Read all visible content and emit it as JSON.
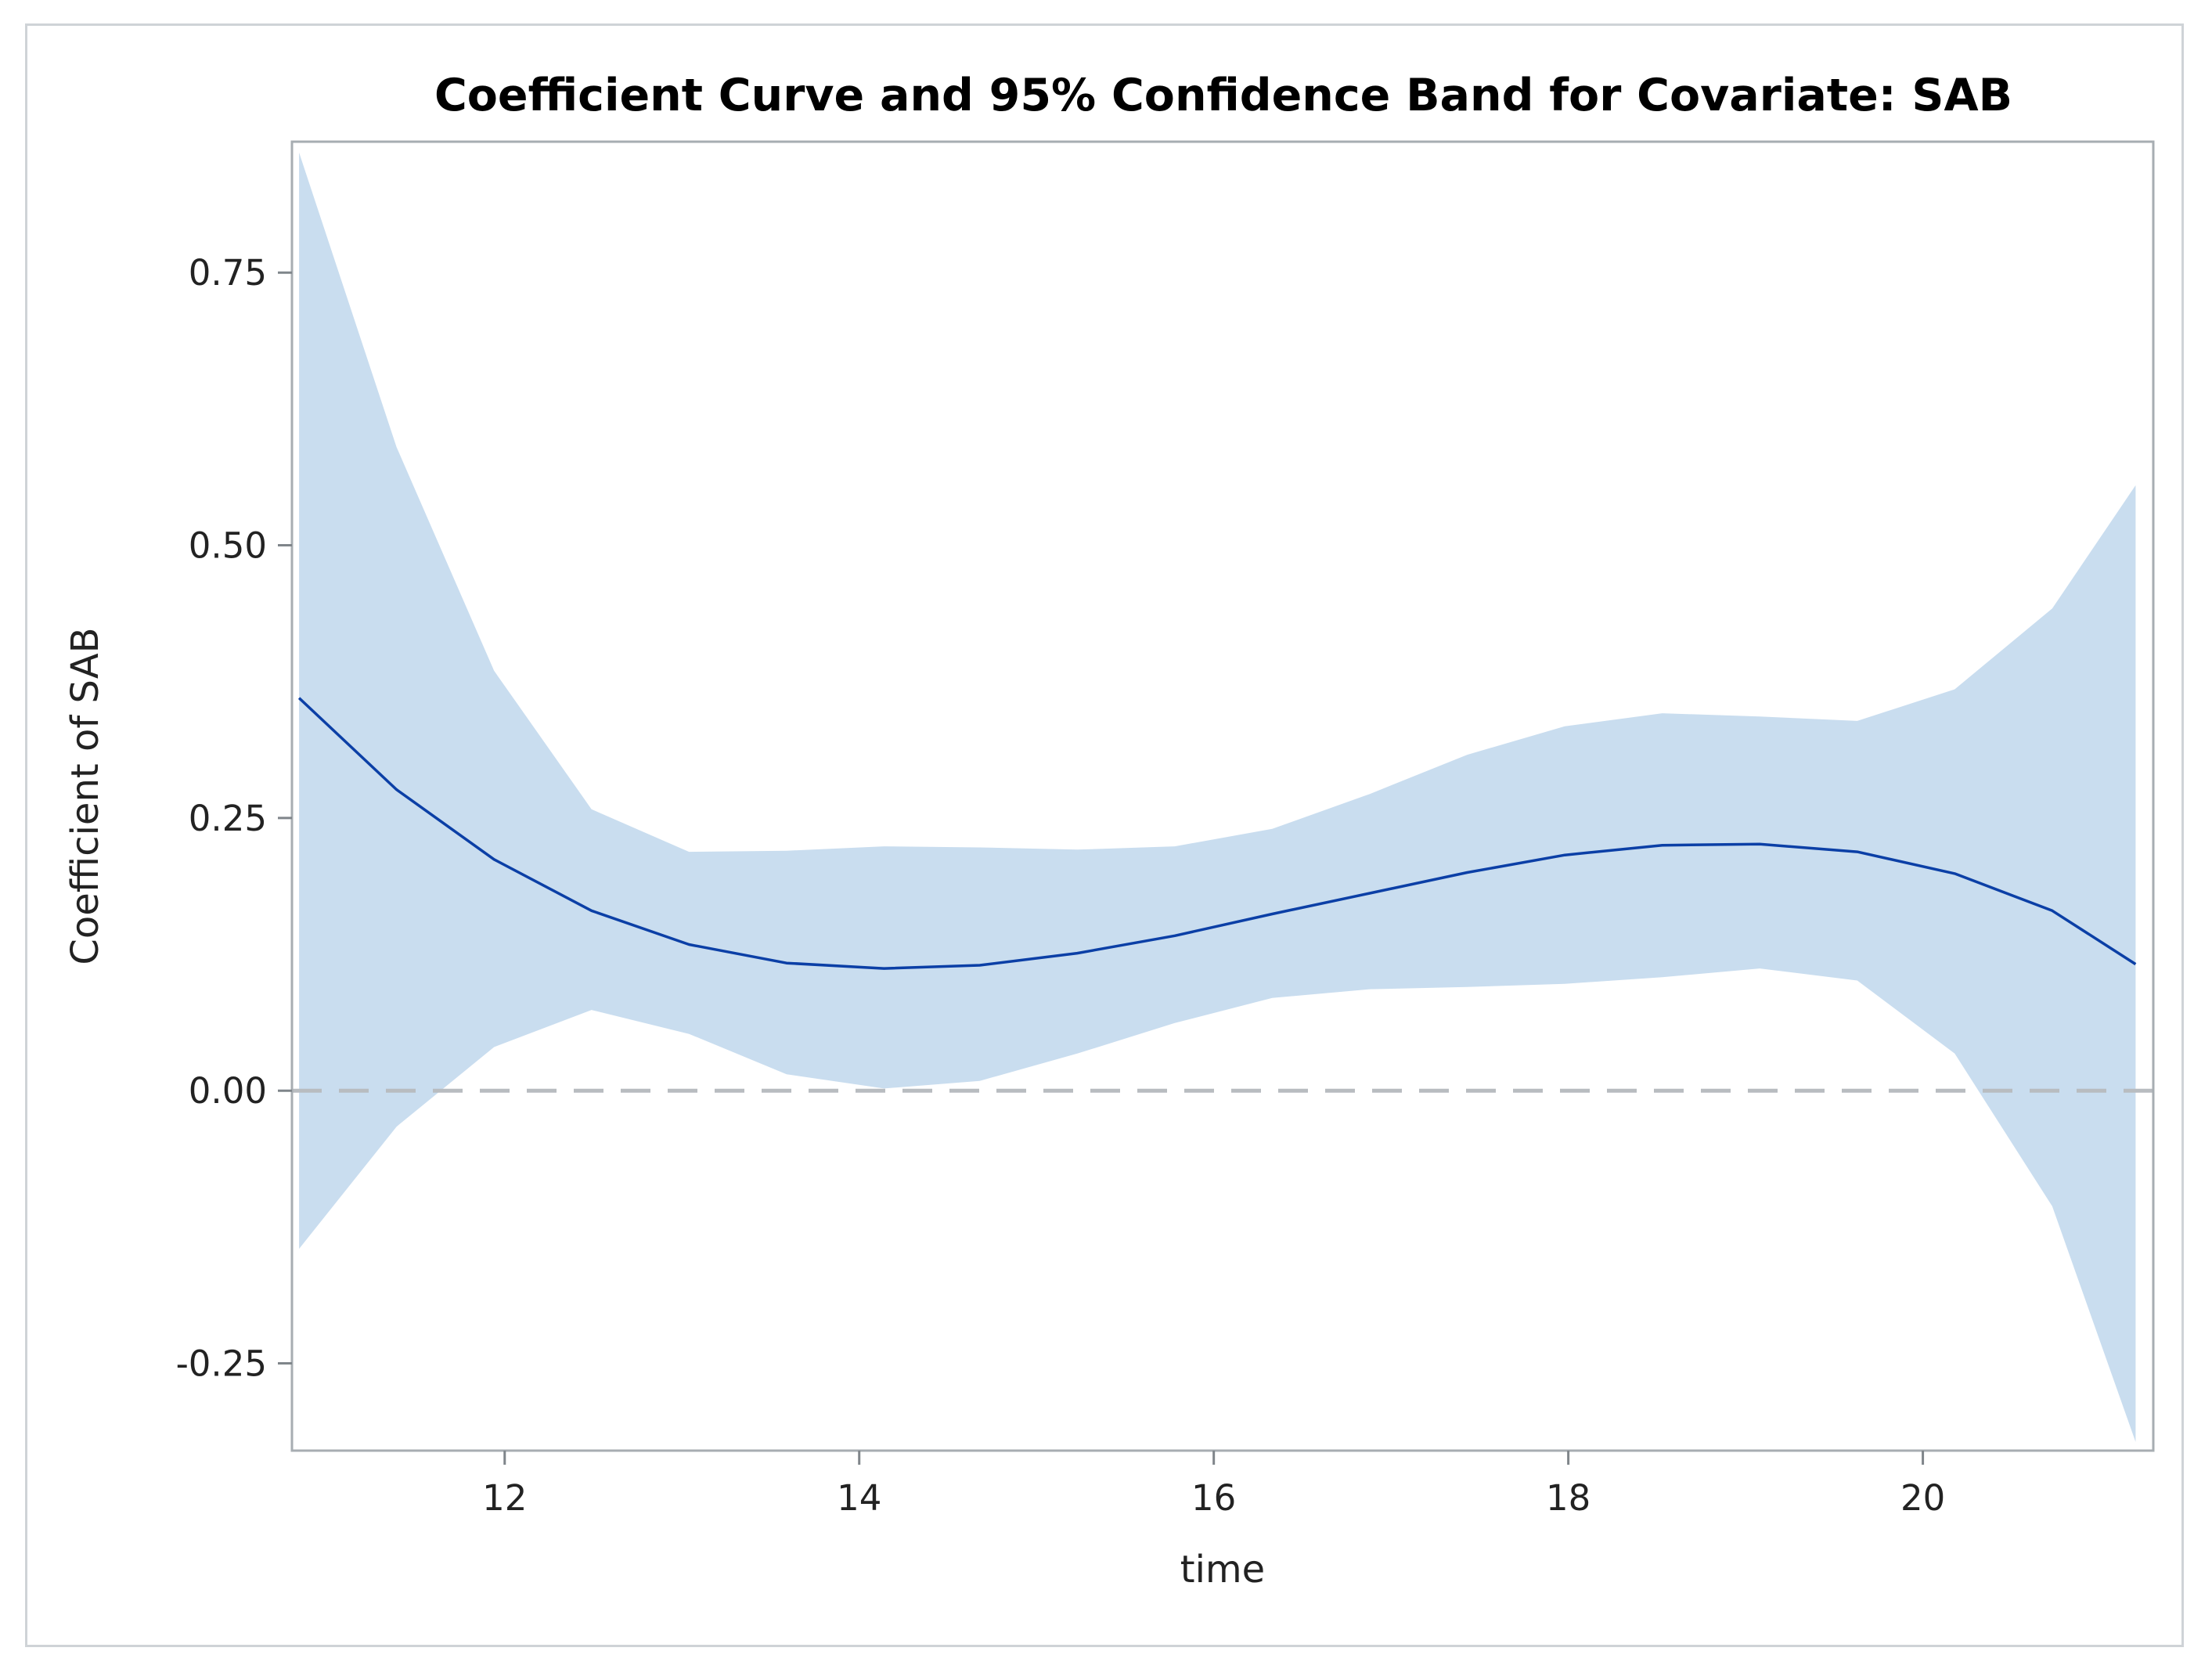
{
  "chart_data": {
    "type": "line",
    "title": "Coefficient Curve and 95% Confidence Band for Covariate: SAB",
    "xlabel": "time",
    "ylabel": "Coefficient of SAB",
    "xlim": [
      10.8,
      21.3
    ],
    "ylim": [
      -0.33,
      0.87
    ],
    "x_ticks": [
      12,
      14,
      16,
      18,
      20
    ],
    "x_tick_labels": [
      "12",
      "14",
      "16",
      "18",
      "20"
    ],
    "y_ticks": [
      -0.25,
      0.0,
      0.25,
      0.5,
      0.75
    ],
    "y_tick_labels": [
      "-0.25",
      "0.00",
      "0.25",
      "0.50",
      "0.75"
    ],
    "reference_line": {
      "y": 0.0,
      "style": "dashed",
      "color": "#b8bcc0"
    },
    "series": [
      {
        "name": "Coefficient",
        "color": "#0b3fa6",
        "x": [
          10.84,
          11.39,
          11.94,
          12.49,
          13.04,
          13.59,
          14.14,
          14.68,
          15.23,
          15.78,
          16.33,
          16.88,
          17.43,
          17.98,
          18.53,
          19.08,
          19.63,
          20.18,
          20.73,
          21.2
        ],
        "values": [
          0.36,
          0.276,
          0.212,
          0.165,
          0.134,
          0.117,
          0.112,
          0.115,
          0.126,
          0.142,
          0.162,
          0.181,
          0.2,
          0.216,
          0.225,
          0.226,
          0.219,
          0.199,
          0.165,
          0.116
        ]
      },
      {
        "name": "95% Confidence Band",
        "type": "band",
        "color": "#c9ddef",
        "x": [
          10.84,
          11.39,
          11.94,
          12.49,
          13.04,
          13.59,
          14.14,
          14.68,
          15.23,
          15.78,
          16.33,
          16.88,
          17.43,
          17.98,
          18.53,
          19.08,
          19.63,
          20.18,
          20.73,
          21.2
        ],
        "upper": [
          0.86,
          0.59,
          0.385,
          0.258,
          0.219,
          0.22,
          0.224,
          0.223,
          0.221,
          0.224,
          0.24,
          0.272,
          0.308,
          0.334,
          0.346,
          0.343,
          0.339,
          0.368,
          0.442,
          0.555
        ],
        "lower": [
          -0.145,
          -0.033,
          0.04,
          0.074,
          0.052,
          0.015,
          0.002,
          0.009,
          0.034,
          0.062,
          0.085,
          0.093,
          0.095,
          0.098,
          0.104,
          0.112,
          0.101,
          0.034,
          -0.106,
          -0.322
        ]
      }
    ],
    "grid": false,
    "legend": "none"
  }
}
